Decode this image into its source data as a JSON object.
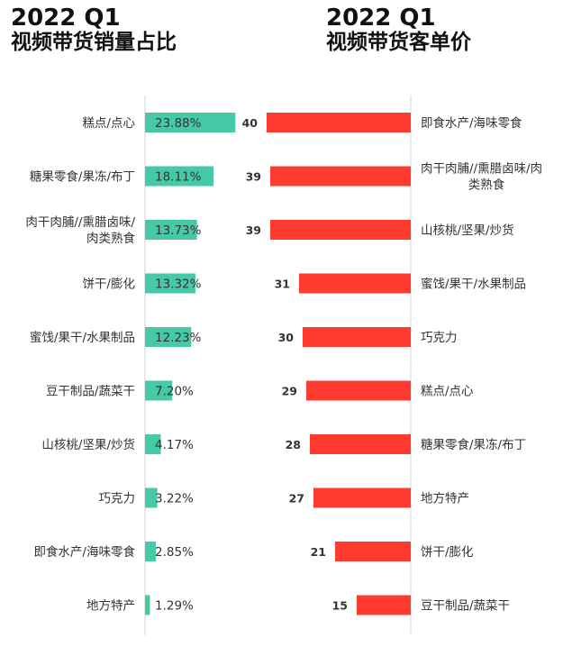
{
  "titles": {
    "left_year": "2022 Q1",
    "left_name": "视频带货销量占比",
    "right_year": "2022 Q1",
    "right_name": "视频带货客单价"
  },
  "colors": {
    "left_bar": "#45c9a6",
    "right_bar": "#ff3b30",
    "axis": "#d0d0d0"
  },
  "chart_data": [
    {
      "type": "bar",
      "orientation": "horizontal",
      "title": "2022 Q1 视频带货销量占比",
      "categories": [
        [
          "糕点/点心"
        ],
        [
          "糖果零食/果冻/布丁"
        ],
        [
          "肉干肉脯//熏腊卤味/",
          "肉类熟食"
        ],
        [
          "饼干/膨化"
        ],
        [
          "蜜饯/果干/水果制品"
        ],
        [
          "豆干制品/蔬菜干"
        ],
        [
          "山核桃/坚果/炒货"
        ],
        [
          "巧克力"
        ],
        [
          "即食水产/海味零食"
        ],
        [
          "地方特产"
        ]
      ],
      "values": [
        23.88,
        18.11,
        13.73,
        13.32,
        12.23,
        7.2,
        4.17,
        3.22,
        2.85,
        1.29
      ],
      "labels": [
        "23.88%",
        "18.11%",
        "13.73%",
        "13.32%",
        "12.23%",
        "7.20%",
        "4.17%",
        "3.22%",
        "2.85%",
        "1.29%"
      ],
      "unit": "%",
      "xlim": [
        0,
        40
      ]
    },
    {
      "type": "bar",
      "orientation": "horizontal",
      "direction": "right-to-left",
      "title": "2022 Q1 视频带货客单价",
      "categories": [
        [
          "即食水产/海味零食"
        ],
        [
          "肉干肉脯//熏腊卤味/肉",
          "类熟食"
        ],
        [
          "山核桃/坚果/炒货"
        ],
        [
          "蜜饯/果干/水果制品"
        ],
        [
          "巧克力"
        ],
        [
          "糕点/点心"
        ],
        [
          "糖果零食/果冻/布丁"
        ],
        [
          "地方特产"
        ],
        [
          "饼干/膨化"
        ],
        [
          "豆干制品/蔬菜干"
        ]
      ],
      "values": [
        40,
        39,
        39,
        31,
        30,
        29,
        28,
        27,
        21,
        15
      ],
      "labels": [
        "40",
        "39",
        "39",
        "31",
        "30",
        "29",
        "28",
        "27",
        "21",
        "15"
      ],
      "xlim": [
        0,
        40
      ]
    }
  ]
}
